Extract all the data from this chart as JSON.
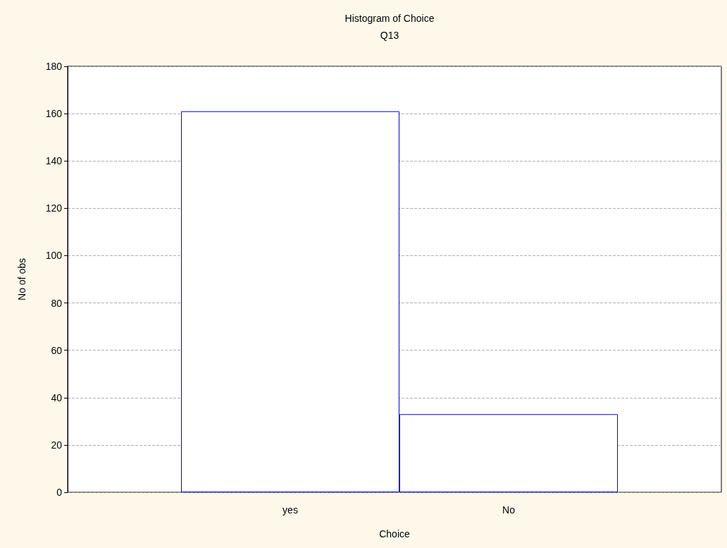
{
  "chart_data": {
    "type": "bar",
    "title": "Histogram of Choice",
    "subtitle": "Q13",
    "xlabel": "Choice",
    "ylabel": "No of obs",
    "categories": [
      "yes",
      "No"
    ],
    "values": [
      161,
      33
    ],
    "color": "#0000ff",
    "ylim": [
      0,
      180
    ],
    "yticks": [
      0,
      20,
      40,
      60,
      80,
      100,
      120,
      140,
      160,
      180
    ],
    "grid": "y"
  }
}
